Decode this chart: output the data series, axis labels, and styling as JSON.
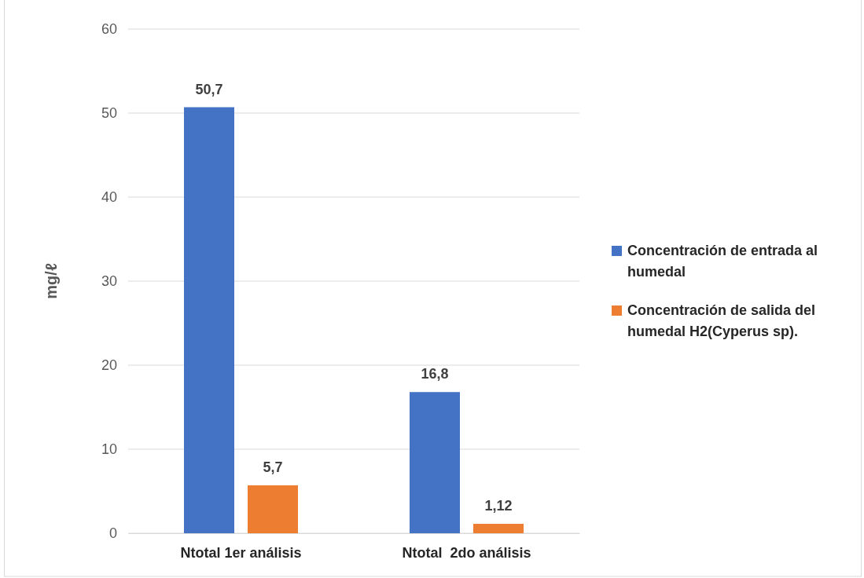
{
  "chart_data": {
    "type": "bar",
    "ylabel": "mg/ℓ",
    "categories": [
      "Ntotal 1er análisis",
      "Ntotal  2do análisis"
    ],
    "series": [
      {
        "name": "Concentración de entrada al humedal",
        "color": "#4472c4",
        "values": [
          50.7,
          16.8
        ],
        "value_labels": [
          "50,7",
          "16,8"
        ]
      },
      {
        "name": "Concentración de salida del humedal H2(Cyperus sp).",
        "color": "#ed7d31",
        "values": [
          5.7,
          1.12
        ],
        "value_labels": [
          "5,7",
          "1,12"
        ]
      }
    ],
    "ylim": [
      0,
      60
    ],
    "yticks": [
      0,
      10,
      20,
      30,
      40,
      50,
      60
    ],
    "grid": "y",
    "legend": "right"
  }
}
